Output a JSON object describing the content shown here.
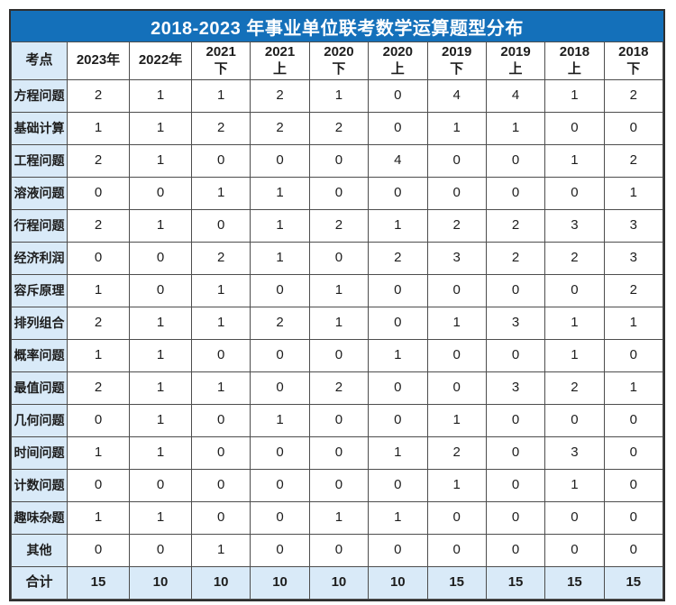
{
  "meta": {
    "title": "2018-2023 年事业单位联考数学运算题型分布"
  },
  "colors": {
    "accent_blue": "#1470ba",
    "label_cell_bg": "#d9eaf8",
    "grid_border": "#4d4d4d",
    "outer_border": "#2f2f2f",
    "title_text": "#ffffff",
    "cell_text": "#1d1d1d"
  },
  "table": {
    "corner_header": "考点",
    "columns": [
      "2023年",
      "2022年",
      "2021\n下",
      "2021\n上",
      "2020\n下",
      "2020\n上",
      "2019\n下",
      "2019\n上",
      "2018\n上",
      "2018\n下"
    ],
    "rows": [
      {
        "label": "方程问题",
        "values": [
          2,
          1,
          1,
          2,
          1,
          0,
          4,
          4,
          1,
          2
        ]
      },
      {
        "label": "基础计算",
        "values": [
          1,
          1,
          2,
          2,
          2,
          0,
          1,
          1,
          0,
          0
        ]
      },
      {
        "label": "工程问题",
        "values": [
          2,
          1,
          0,
          0,
          0,
          4,
          0,
          0,
          1,
          2
        ]
      },
      {
        "label": "溶液问题",
        "values": [
          0,
          0,
          1,
          1,
          0,
          0,
          0,
          0,
          0,
          1
        ]
      },
      {
        "label": "行程问题",
        "values": [
          2,
          1,
          0,
          1,
          2,
          1,
          2,
          2,
          3,
          3
        ]
      },
      {
        "label": "经济利润",
        "values": [
          0,
          0,
          2,
          1,
          0,
          2,
          3,
          2,
          2,
          3
        ]
      },
      {
        "label": "容斥原理",
        "values": [
          1,
          0,
          1,
          0,
          1,
          0,
          0,
          0,
          0,
          2
        ]
      },
      {
        "label": "排列组合",
        "values": [
          2,
          1,
          1,
          2,
          1,
          0,
          1,
          3,
          1,
          1
        ]
      },
      {
        "label": "概率问题",
        "values": [
          1,
          1,
          0,
          0,
          0,
          1,
          0,
          0,
          1,
          0
        ]
      },
      {
        "label": "最值问题",
        "values": [
          2,
          1,
          1,
          0,
          2,
          0,
          0,
          3,
          2,
          1
        ]
      },
      {
        "label": "几何问题",
        "values": [
          0,
          1,
          0,
          1,
          0,
          0,
          1,
          0,
          0,
          0
        ]
      },
      {
        "label": "时间问题",
        "values": [
          1,
          1,
          0,
          0,
          0,
          1,
          2,
          0,
          3,
          0
        ]
      },
      {
        "label": "计数问题",
        "values": [
          0,
          0,
          0,
          0,
          0,
          0,
          1,
          0,
          1,
          0
        ]
      },
      {
        "label": "趣味杂题",
        "values": [
          1,
          1,
          0,
          0,
          1,
          1,
          0,
          0,
          0,
          0
        ]
      },
      {
        "label": "其他",
        "values": [
          0,
          0,
          1,
          0,
          0,
          0,
          0,
          0,
          0,
          0
        ]
      }
    ],
    "total": {
      "label": "合计",
      "values": [
        15,
        10,
        10,
        10,
        10,
        10,
        15,
        15,
        15,
        15
      ]
    }
  },
  "chart_data": {
    "type": "table",
    "title": "2018-2023 年事业单位联考数学运算题型分布",
    "columns": [
      "考点",
      "2023年",
      "2022年",
      "2021下",
      "2021上",
      "2020下",
      "2020上",
      "2019下",
      "2019上",
      "2018上",
      "2018下"
    ],
    "rows": [
      [
        "方程问题",
        2,
        1,
        1,
        2,
        1,
        0,
        4,
        4,
        1,
        2
      ],
      [
        "基础计算",
        1,
        1,
        2,
        2,
        2,
        0,
        1,
        1,
        0,
        0
      ],
      [
        "工程问题",
        2,
        1,
        0,
        0,
        0,
        4,
        0,
        0,
        1,
        2
      ],
      [
        "溶液问题",
        0,
        0,
        1,
        1,
        0,
        0,
        0,
        0,
        0,
        1
      ],
      [
        "行程问题",
        2,
        1,
        0,
        1,
        2,
        1,
        2,
        2,
        3,
        3
      ],
      [
        "经济利润",
        0,
        0,
        2,
        1,
        0,
        2,
        3,
        2,
        2,
        3
      ],
      [
        "容斥原理",
        1,
        0,
        1,
        0,
        1,
        0,
        0,
        0,
        0,
        2
      ],
      [
        "排列组合",
        2,
        1,
        1,
        2,
        1,
        0,
        1,
        3,
        1,
        1
      ],
      [
        "概率问题",
        1,
        1,
        0,
        0,
        0,
        1,
        0,
        0,
        1,
        0
      ],
      [
        "最值问题",
        2,
        1,
        1,
        0,
        2,
        0,
        0,
        3,
        2,
        1
      ],
      [
        "几何问题",
        0,
        1,
        0,
        1,
        0,
        0,
        1,
        0,
        0,
        0
      ],
      [
        "时间问题",
        1,
        1,
        0,
        0,
        0,
        1,
        2,
        0,
        3,
        0
      ],
      [
        "计数问题",
        0,
        0,
        0,
        0,
        0,
        0,
        1,
        0,
        1,
        0
      ],
      [
        "趣味杂题",
        1,
        1,
        0,
        0,
        1,
        1,
        0,
        0,
        0,
        0
      ],
      [
        "其他",
        0,
        0,
        1,
        0,
        0,
        0,
        0,
        0,
        0,
        0
      ],
      [
        "合计",
        15,
        10,
        10,
        10,
        10,
        10,
        15,
        15,
        15,
        15
      ]
    ]
  }
}
